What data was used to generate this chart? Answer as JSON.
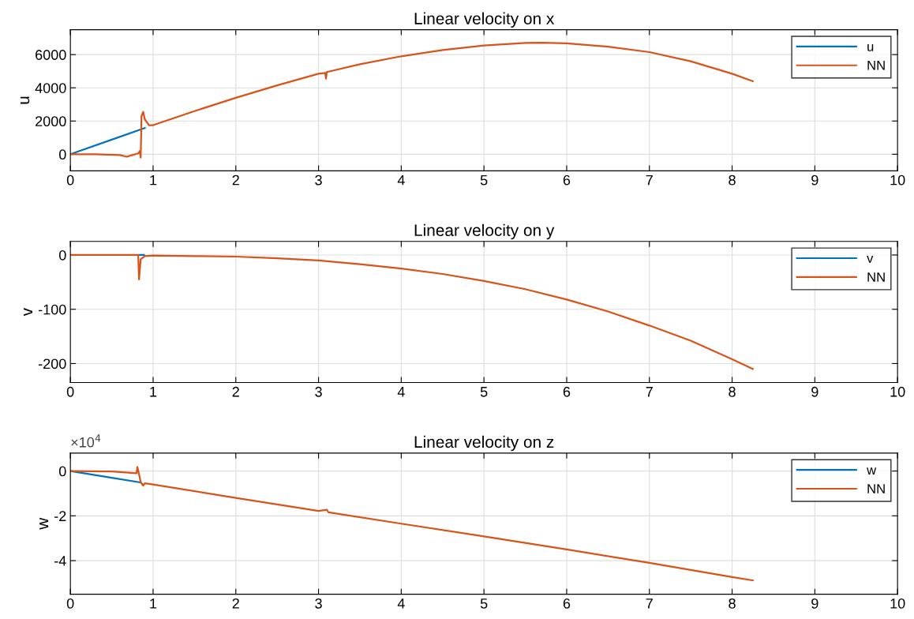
{
  "chart_data": [
    {
      "type": "line",
      "title": "Linear velocity on x",
      "ylabel": "u",
      "xlim": [
        0,
        10
      ],
      "xticks": [
        0,
        1,
        2,
        3,
        4,
        5,
        6,
        7,
        8,
        9,
        10
      ],
      "ylim": [
        -1000,
        7500
      ],
      "yticks": [
        0,
        2000,
        4000,
        6000
      ],
      "grid": true,
      "legend": "top right",
      "series": [
        {
          "name": "u",
          "color": "#0072bd",
          "x": [
            0,
            0.5,
            0.9
          ],
          "values": [
            0,
            880,
            1580
          ]
        },
        {
          "name": "NN",
          "color": "#d95319",
          "x": [
            0,
            0.3,
            0.6,
            0.68,
            0.75,
            0.82,
            0.84,
            0.85,
            0.86,
            0.88,
            0.9,
            0.95,
            1,
            1.5,
            2,
            2.5,
            3,
            3.08,
            3.09,
            3.1,
            3.5,
            4,
            4.5,
            5,
            5.5,
            5.7,
            6,
            6.5,
            7,
            7.5,
            8,
            8.25
          ],
          "values": [
            0,
            0,
            -50,
            -150,
            -50,
            50,
            200,
            -200,
            2300,
            2550,
            2100,
            1750,
            1750,
            2600,
            3400,
            4150,
            4850,
            4900,
            4550,
            4950,
            5420,
            5900,
            6280,
            6550,
            6700,
            6720,
            6680,
            6480,
            6150,
            5600,
            4850,
            4400
          ]
        }
      ]
    },
    {
      "type": "line",
      "title": "Linear velocity on y",
      "ylabel": "v",
      "xlim": [
        0,
        10
      ],
      "xticks": [
        0,
        1,
        2,
        3,
        4,
        5,
        6,
        7,
        8,
        9,
        10
      ],
      "ylim": [
        -235,
        25
      ],
      "yticks": [
        -200,
        -100,
        0
      ],
      "grid": true,
      "legend": "top right",
      "series": [
        {
          "name": "v",
          "color": "#0072bd",
          "x": [
            0.84,
            0.89
          ],
          "values": [
            0,
            0
          ]
        },
        {
          "name": "NN",
          "color": "#d95319",
          "x": [
            0,
            0.82,
            0.83,
            0.85,
            0.9,
            1,
            1.5,
            2,
            2.5,
            3,
            3.5,
            4,
            4.5,
            5,
            5.5,
            6,
            6.5,
            7,
            7.5,
            8,
            8.25
          ],
          "values": [
            0,
            0,
            -45,
            -8,
            -2,
            -1,
            -2,
            -3,
            -6,
            -10,
            -17,
            -25,
            -35,
            -48,
            -63,
            -82,
            -104,
            -130,
            -158,
            -192,
            -210
          ]
        }
      ]
    },
    {
      "type": "line",
      "title": "Linear velocity on z",
      "ylabel": "w",
      "annotations": [
        "×10$^{4}$"
      ],
      "xlim": [
        0,
        10
      ],
      "xticks": [
        0,
        1,
        2,
        3,
        4,
        5,
        6,
        7,
        8,
        9,
        10
      ],
      "ylim": [
        -5.5,
        0.8
      ],
      "yticks": [
        -4,
        -2,
        0
      ],
      "grid": true,
      "legend": "top right",
      "series": [
        {
          "name": "w",
          "color": "#0072bd",
          "x": [
            0,
            0.5,
            0.85
          ],
          "values": [
            0,
            -0.3,
            -0.51
          ]
        },
        {
          "name": "NN",
          "color": "#d95319",
          "x": [
            0,
            0.5,
            0.8,
            0.81,
            0.83,
            0.85,
            0.88,
            0.9,
            1,
            2,
            3,
            3.1,
            3.12,
            4,
            5,
            6,
            7,
            8,
            8.25
          ],
          "values": [
            0,
            -0.02,
            -0.1,
            0.18,
            -0.15,
            -0.5,
            -0.65,
            -0.55,
            -0.6,
            -1.2,
            -1.78,
            -1.73,
            -1.84,
            -2.35,
            -2.92,
            -3.5,
            -4.1,
            -4.73,
            -4.88
          ]
        }
      ]
    }
  ]
}
